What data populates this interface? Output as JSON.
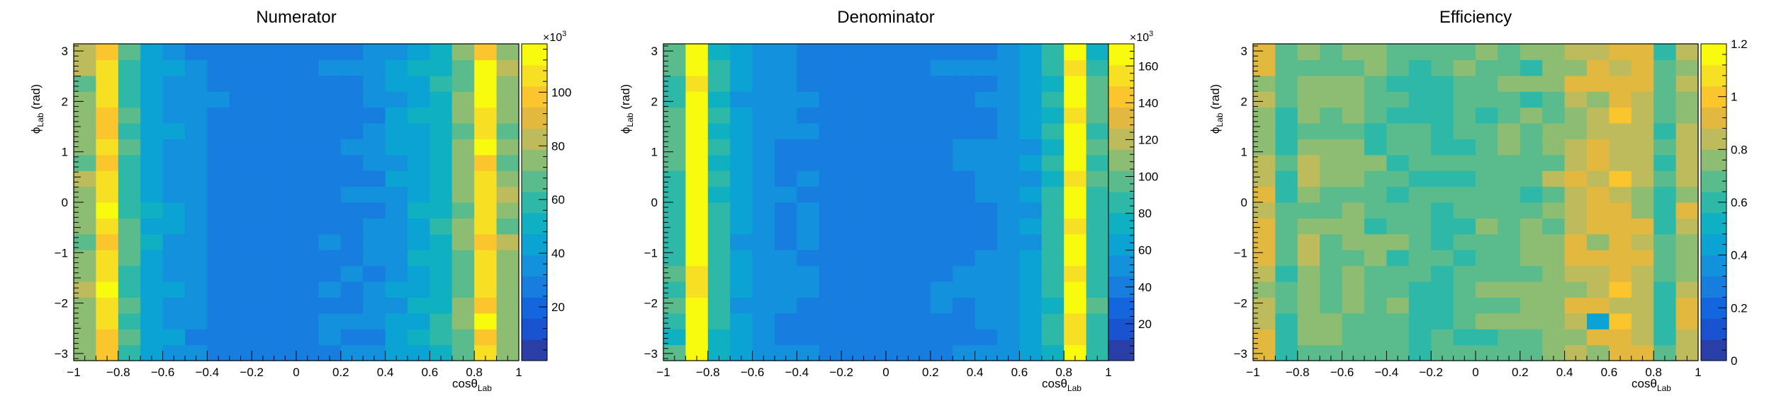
{
  "palette": [
    "#2a3ea8",
    "#1a53d0",
    "#1466de",
    "#177ddf",
    "#1391dc",
    "#0ba3d3",
    "#0fb0c2",
    "#2eb8a8",
    "#5abb8c",
    "#8dbd72",
    "#bdbb5b",
    "#e2b83e",
    "#fac52d",
    "#f7e024",
    "#f9fb0e"
  ],
  "charts": [
    {
      "title": "Numerator",
      "xlabel": "cosθLab",
      "ylabel": "ϕLab (rad)",
      "xticks": [
        "−1",
        "−0.8",
        "−0.6",
        "−0.4",
        "−0.2",
        "0",
        "0.2",
        "0.4",
        "0.6",
        "0.8",
        "1"
      ],
      "yticks": [
        "−3",
        "−2",
        "−1",
        "0",
        "1",
        "2",
        "3"
      ],
      "cbar_exponent": "×10",
      "cbar_exponent_power": "3",
      "cbar_ticks": [
        "20",
        "40",
        "60",
        "80",
        "100"
      ]
    },
    {
      "title": "Denominator",
      "xlabel": "cosθLab",
      "ylabel": "ϕLab (rad)",
      "xticks": [
        "−1",
        "−0.8",
        "−0.6",
        "−0.4",
        "−0.2",
        "0",
        "0.2",
        "0.4",
        "0.6",
        "0.8",
        "1"
      ],
      "yticks": [
        "−3",
        "−2",
        "−1",
        "0",
        "1",
        "2",
        "3"
      ],
      "cbar_exponent": "×10",
      "cbar_exponent_power": "3",
      "cbar_ticks": [
        "20",
        "40",
        "60",
        "80",
        "100",
        "120",
        "140",
        "160"
      ]
    },
    {
      "title": "Efficiency",
      "xlabel": "cosθLab",
      "ylabel": "ϕLab (rad)",
      "xticks": [
        "−1",
        "−0.8",
        "−0.6",
        "−0.4",
        "−0.2",
        "0",
        "0.2",
        "0.4",
        "0.6",
        "0.8",
        "1"
      ],
      "yticks": [
        "−3",
        "−2",
        "−1",
        "0",
        "1",
        "2",
        "3"
      ],
      "cbar_exponent": "",
      "cbar_exponent_power": "",
      "cbar_ticks": [
        "0",
        "0.2",
        "0.4",
        "0.6",
        "0.8",
        "1",
        "1.2"
      ]
    }
  ],
  "chart_data": [
    {
      "type": "heatmap",
      "title": "Numerator",
      "xlabel": "cosθLab",
      "ylabel": "ϕLab (rad)",
      "xlim": [
        -1,
        1
      ],
      "ylim": [
        -3.1416,
        3.1416
      ],
      "zlim": [
        0,
        118000
      ],
      "color_scale_multiplier": 1000,
      "x_bin_centers": [
        -0.95,
        -0.85,
        -0.75,
        -0.65,
        -0.55,
        -0.45,
        -0.35,
        -0.25,
        -0.15,
        -0.05,
        0.05,
        0.15,
        0.25,
        0.35,
        0.45,
        0.55,
        0.65,
        0.75,
        0.85,
        0.95
      ],
      "column_profile": [
        75,
        104,
        62,
        45,
        38,
        33,
        29,
        26,
        27,
        28,
        28,
        30,
        30,
        33,
        40,
        46,
        54,
        72,
        104,
        75
      ]
    },
    {
      "type": "heatmap",
      "title": "Denominator",
      "xlabel": "cosθLab",
      "ylabel": "ϕLab (rad)",
      "xlim": [
        -1,
        1
      ],
      "ylim": [
        -3.1416,
        3.1416
      ],
      "zlim": [
        0,
        172000
      ],
      "color_scale_multiplier": 1000,
      "x_bin_centers": [
        -0.95,
        -0.85,
        -0.75,
        -0.65,
        -0.55,
        -0.45,
        -0.35,
        -0.25,
        -0.15,
        -0.05,
        0.05,
        0.15,
        0.25,
        0.35,
        0.45,
        0.55,
        0.65,
        0.75,
        0.85,
        0.95
      ],
      "column_profile": [
        88,
        165,
        84,
        60,
        52,
        47,
        44,
        42,
        42,
        42,
        42,
        42,
        43,
        44,
        47,
        52,
        60,
        84,
        165,
        88
      ]
    },
    {
      "type": "heatmap",
      "title": "Efficiency",
      "xlabel": "cosθLab",
      "ylabel": "ϕLab (rad)",
      "xlim": [
        -1,
        1
      ],
      "ylim": [
        -3.1416,
        3.1416
      ],
      "zlim": [
        0,
        1.2
      ],
      "x_bin_centers": [
        -0.95,
        -0.85,
        -0.75,
        -0.65,
        -0.55,
        -0.45,
        -0.35,
        -0.25,
        -0.15,
        -0.05,
        0.05,
        0.15,
        0.25,
        0.35,
        0.45,
        0.55,
        0.65,
        0.75,
        0.85,
        0.95
      ],
      "column_profile": [
        0.85,
        0.63,
        0.74,
        0.75,
        0.73,
        0.7,
        0.66,
        0.62,
        0.64,
        0.67,
        0.67,
        0.71,
        0.7,
        0.75,
        0.85,
        0.88,
        0.9,
        0.86,
        0.63,
        0.85
      ]
    }
  ]
}
